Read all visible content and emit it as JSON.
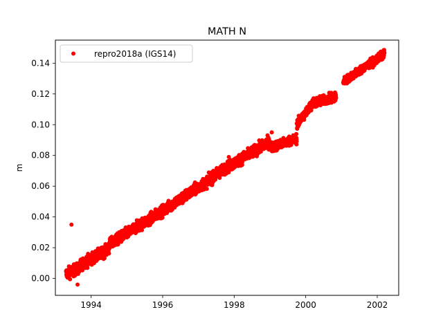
{
  "figure": {
    "title": "MATH N",
    "ylabel": "m",
    "xlabel": ""
  },
  "chart_data": {
    "type": "scatter",
    "title": "MATH N",
    "xlabel": "",
    "ylabel": "m",
    "xlim": [
      1993.0,
      2002.6
    ],
    "ylim": [
      -0.011,
      0.155
    ],
    "xticks": [
      1994,
      1996,
      1998,
      2000,
      2002
    ],
    "xtick_labels": [
      "1994",
      "1996",
      "1998",
      "2000",
      "2002"
    ],
    "yticks": [
      0.0,
      0.02,
      0.04,
      0.06,
      0.08,
      0.1,
      0.12,
      0.14
    ],
    "ytick_labels": [
      "0.00",
      "0.02",
      "0.04",
      "0.06",
      "0.08",
      "0.10",
      "0.12",
      "0.14"
    ],
    "grid": false,
    "legend": {
      "placement": "upper-left",
      "entries": [
        "repro2018a (IGS14)"
      ]
    },
    "series": [
      {
        "name": "repro2018a (IGS14)",
        "color": "#ff0000",
        "marker": "circle",
        "segments": [
          {
            "x_start": 1993.3,
            "x_end": 1993.7,
            "y_start": 0.003,
            "y_end": 0.007,
            "noise": 0.0035
          },
          {
            "x_start": 1993.7,
            "x_end": 1994.5,
            "y_start": 0.009,
            "y_end": 0.019,
            "noise": 0.0035
          },
          {
            "x_start": 1994.5,
            "x_end": 1996.0,
            "y_start": 0.022,
            "y_end": 0.044,
            "noise": 0.0035
          },
          {
            "x_start": 1996.0,
            "x_end": 1997.5,
            "y_start": 0.044,
            "y_end": 0.067,
            "noise": 0.0035
          },
          {
            "x_start": 1997.5,
            "x_end": 1999.0,
            "y_start": 0.068,
            "y_end": 0.089,
            "noise": 0.0035
          },
          {
            "x_start": 1999.0,
            "x_end": 1999.75,
            "y_start": 0.085,
            "y_end": 0.091,
            "noise": 0.003
          },
          {
            "x_start": 1999.75,
            "x_end": 2000.2,
            "y_start": 0.1,
            "y_end": 0.114,
            "noise": 0.003
          },
          {
            "x_start": 2000.2,
            "x_end": 2000.85,
            "y_start": 0.114,
            "y_end": 0.118,
            "noise": 0.003
          },
          {
            "x_start": 2001.05,
            "x_end": 2002.2,
            "y_start": 0.128,
            "y_end": 0.146,
            "noise": 0.0025
          }
        ],
        "outliers": [
          {
            "x": 1993.45,
            "y": 0.035
          },
          {
            "x": 1993.62,
            "y": -0.004
          },
          {
            "x": 1997.85,
            "y": 0.079
          },
          {
            "x": 1999.05,
            "y": 0.095
          }
        ]
      }
    ]
  }
}
